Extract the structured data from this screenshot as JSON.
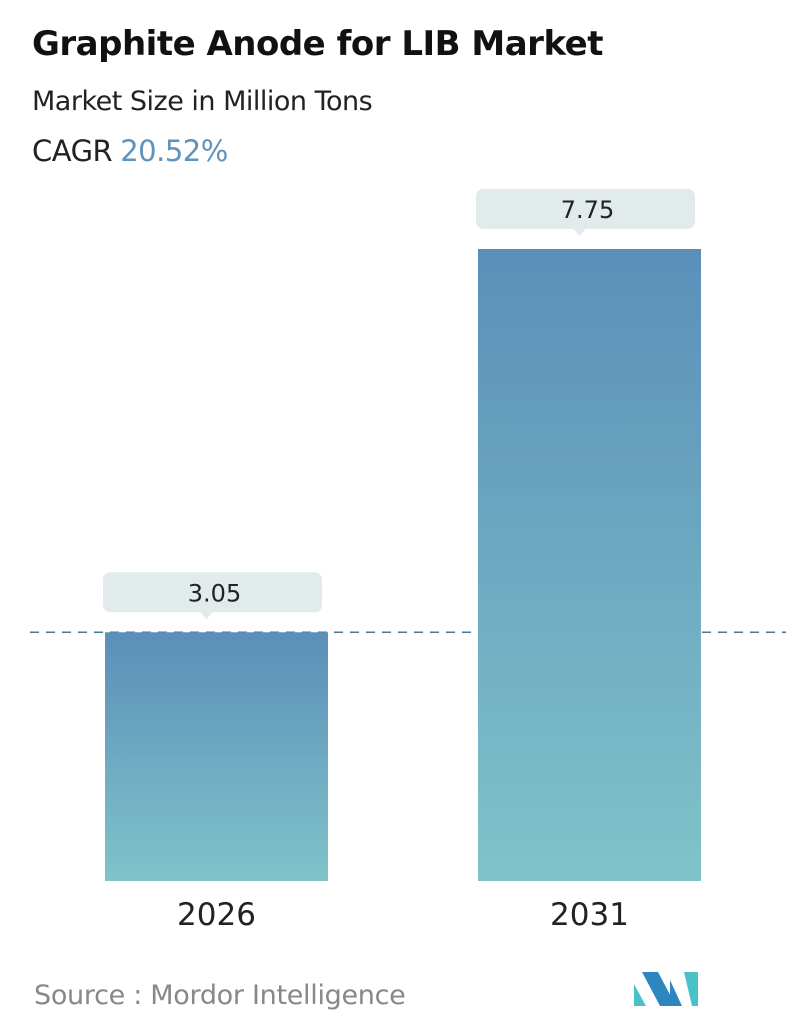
{
  "header": {
    "title": "Graphite Anode for LIB Market",
    "subtitle": "Market Size in Million Tons",
    "cagr_label": "CAGR",
    "cagr_value": "20.52%"
  },
  "chart_data": {
    "type": "bar",
    "categories": [
      "2026",
      "2031"
    ],
    "values": [
      3.05,
      7.75
    ],
    "data_labels": [
      "3.05",
      "7.75"
    ],
    "ylim": [
      0,
      7.75
    ],
    "grid": false,
    "reference_line": {
      "value": 3.05,
      "style": "dashed"
    },
    "colors": {
      "bar_top": "#5b8fb9",
      "bar_bottom": "#80c3c9",
      "label_bg": "#e2ebec",
      "ref_line": "#4e7a94"
    }
  },
  "footer": {
    "source": "Source :  Mordor Intelligence",
    "logo_text": "MI"
  }
}
